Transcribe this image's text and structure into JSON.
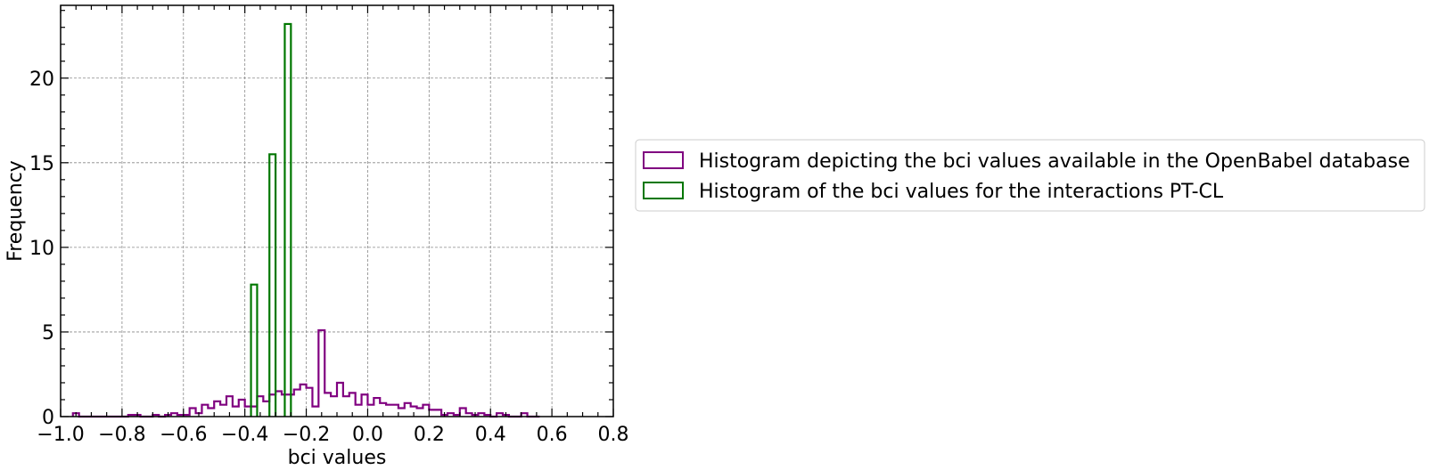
{
  "chart_data": {
    "type": "histogram",
    "xlabel": "bci values",
    "ylabel": "Frequency",
    "xlim": [
      -1.0,
      0.8
    ],
    "ylim": [
      0,
      24.3
    ],
    "xticks": [
      -1.0,
      -0.8,
      -0.6,
      -0.4,
      -0.2,
      0.0,
      0.2,
      0.4,
      0.6,
      0.8
    ],
    "xtick_labels": [
      "−1.0",
      "−0.8",
      "−0.6",
      "−0.4",
      "−0.2",
      "0.0",
      "0.2",
      "0.4",
      "0.6",
      "0.8"
    ],
    "yticks": [
      0,
      5,
      10,
      15,
      20
    ],
    "ytick_labels": [
      "0",
      "5",
      "10",
      "15",
      "20"
    ],
    "grid": true,
    "legend_position": "right",
    "series": [
      {
        "name": "Histogram depicting the bci values available in the OpenBabel database",
        "color": "#800080",
        "bin_start": -0.96,
        "bin_width": 0.02,
        "values": [
          0.2,
          0,
          0,
          0,
          0,
          0,
          0,
          0,
          0,
          0.1,
          0.1,
          0,
          0,
          0.1,
          0,
          0.1,
          0.2,
          0.1,
          0.1,
          0.5,
          0.2,
          0.7,
          0.5,
          0.9,
          0.7,
          1.2,
          0.6,
          1.0,
          0.6,
          0.6,
          1.2,
          0.9,
          1.3,
          1.5,
          1.3,
          1.3,
          1.6,
          1.9,
          1.7,
          0.6,
          5.1,
          1.4,
          1.2,
          2.0,
          1.2,
          1.4,
          0.7,
          1.3,
          0.7,
          1.1,
          0.8,
          0.7,
          0.7,
          0.5,
          0.8,
          0.6,
          0.5,
          0.7,
          0.4,
          0.4,
          0.1,
          0.2,
          0.1,
          0.5,
          0.2,
          0.1,
          0.2,
          0.1,
          0,
          0.2,
          0.1,
          0,
          0,
          0.2,
          0,
          0
        ]
      },
      {
        "name": "Histogram of the bci values for the interactions PT-CL",
        "color": "#007700",
        "bars": [
          {
            "x0": -0.38,
            "x1": -0.36,
            "value": 7.8
          },
          {
            "x0": -0.32,
            "x1": -0.3,
            "value": 15.5
          },
          {
            "x0": -0.27,
            "x1": -0.25,
            "value": 23.2
          }
        ]
      }
    ]
  }
}
